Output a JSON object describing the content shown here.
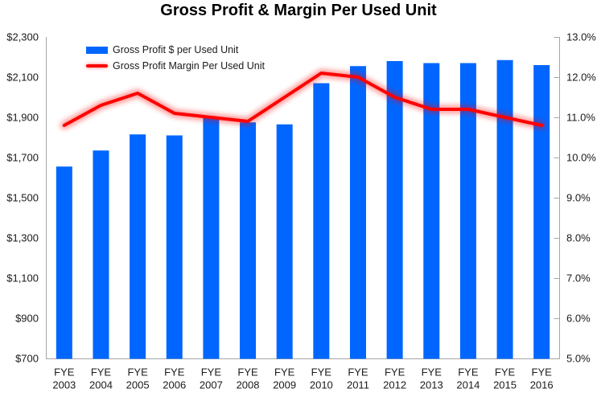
{
  "title": "Gross Profit & Margin Per Used Unit",
  "colors": {
    "bar": "#0066FF",
    "line": "#FF0000",
    "line_glow": "#FF0000",
    "axis": "#A6A6A6",
    "text": "#1A1A1A",
    "title": "#000000",
    "background": "#FFFFFF"
  },
  "legend": [
    {
      "label": "Gross Profit $ per Used Unit",
      "swatch": "bar"
    },
    {
      "label": "Gross Profit Margin Per Used Unit",
      "swatch": "line"
    }
  ],
  "chart_data": {
    "type": "bar",
    "subtype": "combo-bar-line-dual-axis",
    "title": "Gross Profit & Margin Per Used Unit",
    "categories": [
      "FYE 2003",
      "FYE 2004",
      "FYE 2005",
      "FYE 2006",
      "FYE 2007",
      "FYE 2008",
      "FYE 2009",
      "FYE 2010",
      "FYE 2011",
      "FYE 2012",
      "FYE 2013",
      "FYE 2014",
      "FYE 2015",
      "FYE 2016"
    ],
    "series": [
      {
        "name": "Gross Profit $ per Used Unit",
        "type": "bar",
        "axis": "left",
        "values": [
          1655,
          1735,
          1815,
          1810,
          1900,
          1875,
          1865,
          2070,
          2155,
          2180,
          2170,
          2170,
          2185,
          2160
        ]
      },
      {
        "name": "Gross Profit Margin Per Used Unit",
        "type": "line",
        "axis": "right",
        "values": [
          10.8,
          11.3,
          11.6,
          11.1,
          11.0,
          10.9,
          11.5,
          12.1,
          12.0,
          11.5,
          11.2,
          11.2,
          11.0,
          10.8
        ]
      }
    ],
    "left_axis": {
      "min": 700,
      "max": 2300,
      "step": 200,
      "tick_labels_top_to_bottom": [
        "$2,300",
        "$2,100",
        "$1,900",
        "$1,700",
        "$1,500",
        "$1,300",
        "$1,100",
        "$900",
        "$700"
      ]
    },
    "right_axis": {
      "min": 5.0,
      "max": 13.0,
      "step": 1.0,
      "tick_labels_top_to_bottom": [
        "13.0%",
        "12.0%",
        "11.0%",
        "10.0%",
        "9.0%",
        "8.0%",
        "7.0%",
        "6.0%",
        "5.0%"
      ]
    },
    "grid": false,
    "legend_position": "top-left-inside"
  }
}
